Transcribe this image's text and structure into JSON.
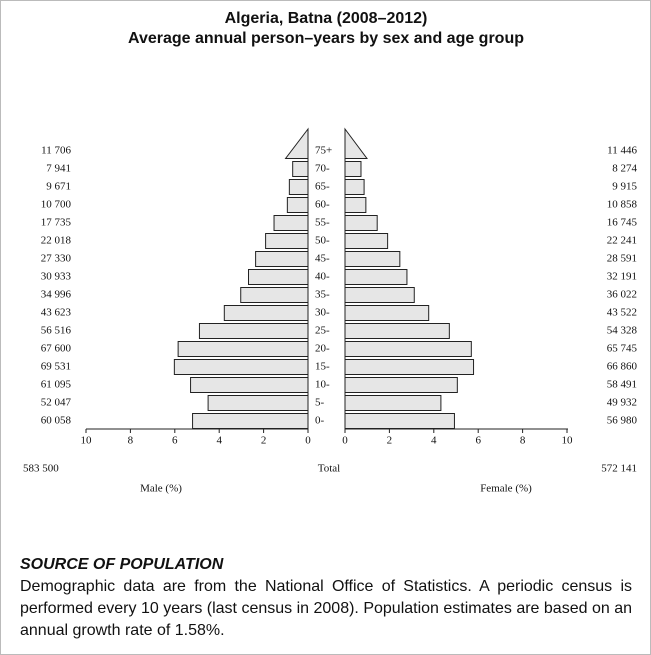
{
  "chart_data": {
    "type": "pyramid",
    "title": "Algeria, Batna (2008–2012)",
    "subtitle": "Average annual person–years by sex and age group",
    "categories": [
      "0-",
      "5-",
      "10-",
      "15-",
      "20-",
      "25-",
      "30-",
      "35-",
      "40-",
      "45-",
      "50-",
      "55-",
      "60-",
      "65-",
      "70-",
      "75+"
    ],
    "series": [
      {
        "name": "Male (%)",
        "color": "#e6e6e6",
        "values": [
          5.2,
          4.5,
          5.29,
          6.02,
          5.85,
          4.89,
          3.77,
          3.03,
          2.68,
          2.36,
          1.91,
          1.53,
          0.93,
          0.84,
          0.69,
          1.01
        ],
        "count_labels": [
          "60 058",
          "52 047",
          "61 095",
          "69 531",
          "67 600",
          "56 516",
          "43 623",
          "34 996",
          "30 933",
          "27 330",
          "22 018",
          "17 735",
          "10 700",
          "9 671",
          "7 941",
          "11 706"
        ],
        "total_label": "583 500"
      },
      {
        "name": "Female (%)",
        "color": "#e6e6e6",
        "values": [
          4.93,
          4.32,
          5.06,
          5.79,
          5.69,
          4.7,
          3.77,
          3.12,
          2.79,
          2.47,
          1.92,
          1.45,
          0.94,
          0.86,
          0.72,
          0.99
        ],
        "count_labels": [
          "56 980",
          "49 932",
          "58 491",
          "66 860",
          "65 745",
          "54 328",
          "43 522",
          "36 022",
          "32 191",
          "28 591",
          "22 241",
          "16 745",
          "10 858",
          "9 915",
          "8 274",
          "11 446"
        ],
        "total_label": "572 141"
      }
    ],
    "total_text": "Total",
    "xlim": [
      0,
      10
    ],
    "xticks": [
      0,
      2,
      4,
      6,
      8,
      10
    ]
  },
  "source": {
    "heading": "SOURCE OF POPULATION",
    "text": "Demographic data are from the National Office of Statistics. A periodic census is performed every 10 years (last census in 2008). Population estimates are based on an annual growth rate of 1.58%."
  }
}
